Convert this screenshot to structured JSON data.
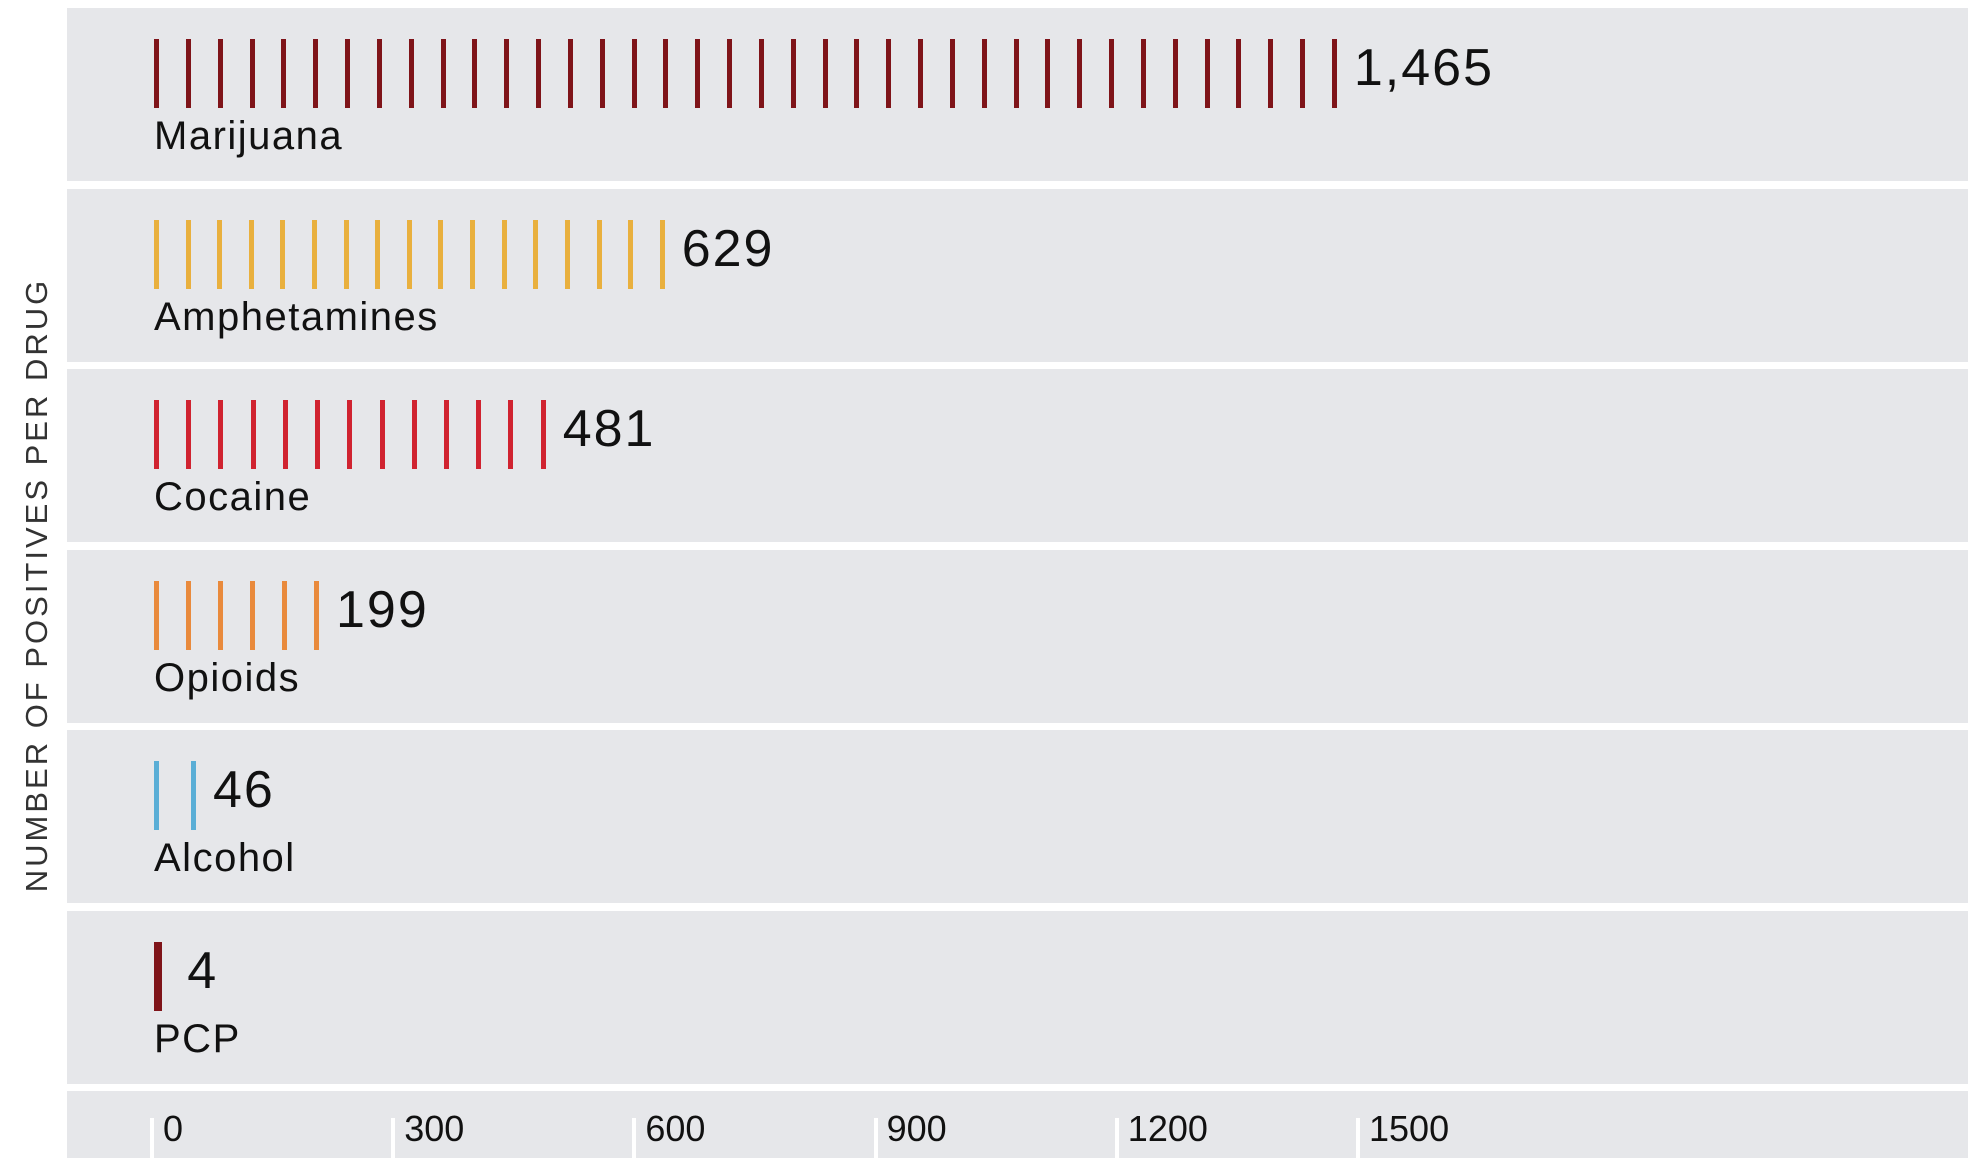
{
  "chart_data": {
    "type": "bar",
    "orientation": "horizontal",
    "ylabel": "NUMBER OF POSITIVES PER DRUG",
    "categories": [
      "Marijuana",
      "Amphetamines",
      "Cocaine",
      "Opioids",
      "Alcohol",
      "PCP"
    ],
    "values": [
      1465,
      629,
      481,
      199,
      46,
      4
    ],
    "value_labels": [
      "1,465",
      "629",
      "481",
      "199",
      "46",
      "4"
    ],
    "colors": [
      "#7f1419",
      "#e9b03e",
      "#d02330",
      "#e98a3c",
      "#5aaed6",
      "#7f1419"
    ],
    "x_ticks": [
      0,
      300,
      600,
      900,
      1200,
      1500
    ],
    "x_tick_labels": [
      "0",
      "300",
      "600",
      "900",
      "1200",
      "1500"
    ],
    "xlim": [
      0,
      1650
    ],
    "grid": false,
    "legend": "none"
  }
}
